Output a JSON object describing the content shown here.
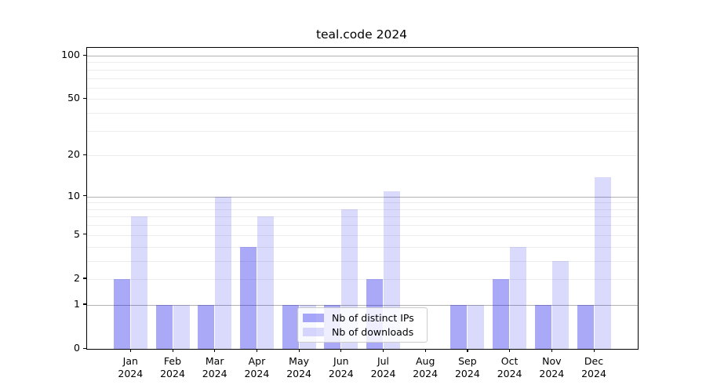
{
  "chart_data": {
    "type": "bar",
    "title": "teal.code 2024",
    "x_year": "2024",
    "categories": [
      "Jan",
      "Feb",
      "Mar",
      "Apr",
      "May",
      "Jun",
      "Jul",
      "Aug",
      "Sep",
      "Oct",
      "Nov",
      "Dec"
    ],
    "series": [
      {
        "name": "Nb of distinct IPs",
        "color": "rgba(10,10,235,0.35)",
        "values": [
          2,
          1,
          1,
          4,
          1,
          1,
          2,
          0,
          1,
          2,
          1,
          1
        ]
      },
      {
        "name": "Nb of downloads",
        "color": "rgba(10,10,235,0.15)",
        "values": [
          7,
          1,
          10,
          7,
          1,
          8,
          11,
          0,
          1,
          4,
          3,
          14
        ]
      }
    ],
    "y_axis": {
      "scale": "log1p",
      "ylim": [
        0,
        100
      ],
      "ticks": [
        0,
        1,
        2,
        5,
        10,
        20,
        50,
        100
      ],
      "major_grid": [
        1,
        10,
        100
      ],
      "minor_grid": [
        2,
        3,
        4,
        5,
        6,
        7,
        8,
        9,
        20,
        30,
        40,
        50,
        60,
        70,
        80,
        90
      ]
    },
    "legend": {
      "position": "lower center inside"
    },
    "xlabel": "",
    "ylabel": ""
  },
  "colors": {
    "bar_dark": "rgba(10,10,235,0.35)",
    "bar_light": "rgba(10,10,235,0.15)",
    "major_grid": "rgba(0,0,0,0.30)",
    "minor_grid": "rgba(0,0,0,0.07)",
    "axis": "#000000",
    "legend_border": "#cccccc",
    "background": "#ffffff"
  }
}
